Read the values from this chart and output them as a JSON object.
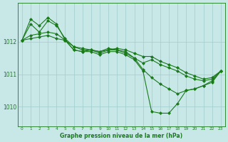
{
  "series": [
    {
      "x": [
        0,
        1,
        2,
        3,
        4,
        5,
        6,
        7,
        8,
        9,
        10,
        11,
        12,
        13,
        14,
        15,
        16,
        17,
        18,
        19,
        20,
        21,
        22,
        23
      ],
      "y": [
        1012.05,
        1012.55,
        1012.3,
        1012.65,
        1012.5,
        1012.1,
        1011.85,
        1011.8,
        1011.75,
        1011.7,
        1011.75,
        1011.8,
        1011.75,
        1011.65,
        1011.55,
        1011.55,
        1011.4,
        1011.3,
        1011.2,
        1011.05,
        1010.95,
        1010.85,
        1010.9,
        1011.1
      ]
    },
    {
      "x": [
        0,
        1,
        2,
        3,
        4,
        5,
        6,
        7,
        8,
        9,
        10,
        11,
        12,
        13,
        14,
        15,
        16,
        17,
        18,
        19,
        20,
        21,
        22,
        23
      ],
      "y": [
        1012.05,
        1012.7,
        1012.5,
        1012.75,
        1012.55,
        1012.05,
        1011.85,
        1011.75,
        1011.75,
        1011.7,
        1011.8,
        1011.75,
        1011.7,
        1011.5,
        1011.35,
        1011.45,
        1011.3,
        1011.2,
        1011.1,
        1010.95,
        1010.85,
        1010.8,
        1010.85,
        1011.1
      ]
    },
    {
      "x": [
        0,
        1,
        2,
        3,
        4,
        5,
        6,
        7,
        8,
        9,
        10,
        11,
        12,
        13,
        14,
        15,
        16,
        17,
        18,
        19,
        20,
        21,
        22,
        23
      ],
      "y": [
        1012.05,
        1012.2,
        1012.25,
        1012.3,
        1012.25,
        1012.05,
        1011.75,
        1011.7,
        1011.75,
        1011.65,
        1011.75,
        1011.75,
        1011.65,
        1011.5,
        1011.15,
        1010.9,
        1010.7,
        1010.55,
        1010.4,
        1010.5,
        1010.55,
        1010.65,
        1010.75,
        1011.1
      ]
    },
    {
      "x": [
        0,
        1,
        2,
        3,
        4,
        5,
        6,
        7,
        8,
        9,
        10,
        11,
        12,
        13,
        14,
        15,
        16,
        17,
        18,
        19,
        20,
        21,
        22,
        23
      ],
      "y": [
        1012.05,
        1012.1,
        1012.15,
        1012.2,
        1012.1,
        1012.05,
        1011.75,
        1011.7,
        1011.7,
        1011.6,
        1011.7,
        1011.7,
        1011.6,
        1011.45,
        1011.1,
        1009.85,
        1009.8,
        1009.8,
        1010.1,
        1010.5,
        1010.55,
        1010.65,
        1010.8,
        1011.1
      ]
    }
  ],
  "color": "#1a7a1a",
  "bg_color": "#c8e8e8",
  "grid_color": "#a0cccc",
  "ylabel_ticks": [
    1010,
    1011,
    1012
  ],
  "xtick_labels": [
    "0",
    "1",
    "2",
    "3",
    "4",
    "5",
    "6",
    "7",
    "8",
    "9",
    "10",
    "11",
    "12",
    "13",
    "14",
    "15",
    "16",
    "17",
    "18",
    "19",
    "20",
    "21",
    "22",
    "23"
  ],
  "ylim": [
    1009.4,
    1013.2
  ],
  "xlabel": "Graphe pression niveau de la mer (hPa)",
  "marker": "D",
  "markersize": 2.0,
  "linewidth": 0.8
}
